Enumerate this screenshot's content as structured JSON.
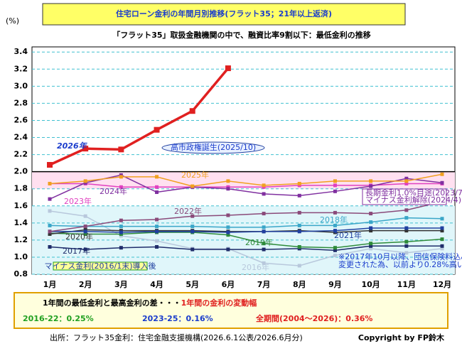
{
  "chart_data": {
    "type": "line",
    "title": "住宅ローン金利の年間月別推移(フラット35；21年以上返済)",
    "subtitle": "「フラット35」取扱金融機関の中で、融資比率9割以下：最低金利の推移",
    "y_unit": "(%)",
    "categories": [
      "1月",
      "2月",
      "3月",
      "4月",
      "5月",
      "6月",
      "7月",
      "8月",
      "9月",
      "10月",
      "11月",
      "12月"
    ],
    "ylim": [
      0.8,
      3.46
    ],
    "yticks": [
      0.8,
      {
        "value": 1,
        "label": "1.0"
      },
      1.2,
      1.4,
      1.6,
      1.8,
      {
        "value": 2,
        "label": "2.0"
      },
      2.2,
      2.4,
      2.6,
      2.8,
      {
        "value": 3,
        "label": "3.0"
      },
      3.2,
      3.4
    ],
    "grid": true,
    "series": [
      {
        "name": "2016年",
        "color": "#b8c8dc",
        "values": [
          1.54,
          1.48,
          1.25,
          1.19,
          1.1,
          1.1,
          0.93,
          0.9,
          1.02,
          1.1,
          1.05,
          1.1
        ]
      },
      {
        "name": "2017年",
        "color": "#1f2d6b",
        "values": [
          1.12,
          1.09,
          1.11,
          1.12,
          1.09,
          1.09,
          1.09,
          1.1,
          1.08,
          1.13,
          1.13,
          1.13
        ]
      },
      {
        "name": "2018年",
        "color": "#3aa6c8",
        "values": [
          1.37,
          1.36,
          1.36,
          1.36,
          1.36,
          1.35,
          1.35,
          1.37,
          1.37,
          1.41,
          1.46,
          1.45
        ]
      },
      {
        "name": "2019年",
        "color": "#2e8b3a",
        "values": [
          1.28,
          1.27,
          1.27,
          1.29,
          1.29,
          1.26,
          1.16,
          1.12,
          1.11,
          1.16,
          1.18,
          1.21
        ]
      },
      {
        "name": "2020年",
        "color": "#333333",
        "values": [
          1.27,
          1.32,
          1.31,
          1.31,
          1.31,
          1.3,
          1.3,
          1.31,
          1.29,
          1.31,
          1.31,
          1.31
        ]
      },
      {
        "name": "2021年",
        "color": "#2040a0",
        "values": [
          1.3,
          1.3,
          1.29,
          1.3,
          1.3,
          1.29,
          1.3,
          1.3,
          1.31,
          1.34,
          1.34,
          1.34
        ]
      },
      {
        "name": "2022年",
        "color": "#8a4a7a",
        "values": [
          1.3,
          1.36,
          1.43,
          1.44,
          1.48,
          1.49,
          1.51,
          1.52,
          1.52,
          1.51,
          1.55,
          1.65
        ]
      },
      {
        "name": "2023年",
        "color": "#e040c0",
        "values": [
          1.86,
          1.86,
          1.82,
          1.82,
          1.82,
          1.82,
          1.82,
          1.84,
          1.84,
          1.84,
          1.86,
          1.86
        ]
      },
      {
        "name": "2024年",
        "color": "#8030a0",
        "values": [
          1.68,
          1.87,
          1.96,
          1.76,
          1.82,
          1.8,
          1.74,
          1.72,
          1.77,
          1.83,
          1.92,
          1.87
        ]
      },
      {
        "name": "2025年",
        "color": "#f0a020",
        "values": [
          1.86,
          1.89,
          1.94,
          1.94,
          1.83,
          1.89,
          1.84,
          1.86,
          1.89,
          1.89,
          1.89,
          1.97
        ]
      },
      {
        "name": "2026年",
        "color": "#e02020",
        "values": [
          2.08,
          2.27,
          2.26,
          2.49,
          2.71,
          3.21,
          null,
          null,
          null,
          null,
          null,
          null
        ]
      }
    ],
    "annotations": [
      "高市政権誕生(2025/10)",
      "マイナス金利(2016/1末)導入後",
      "長期金利1.0%目途(2023/7)",
      "マイナス金利解除(2024/4)",
      "※2017年10月以降、団信保険料込みの金利に",
      "変更された為、以前より0.28%高い。"
    ],
    "summary": {
      "heading_black": "1年間の最低金利と最高金利の差・・・",
      "heading_red": "1年間の金利の変動幅",
      "range1": "2016-22：0.25%",
      "range2": "2023-25：0.16%",
      "range3": "全期間(2004～2026)：0.36%"
    },
    "source": "出所：フラット35金利：住宅金融支援機構(2026.6.1公表/2026.6月分)",
    "copyright": "Copyright by FP鈴木"
  }
}
